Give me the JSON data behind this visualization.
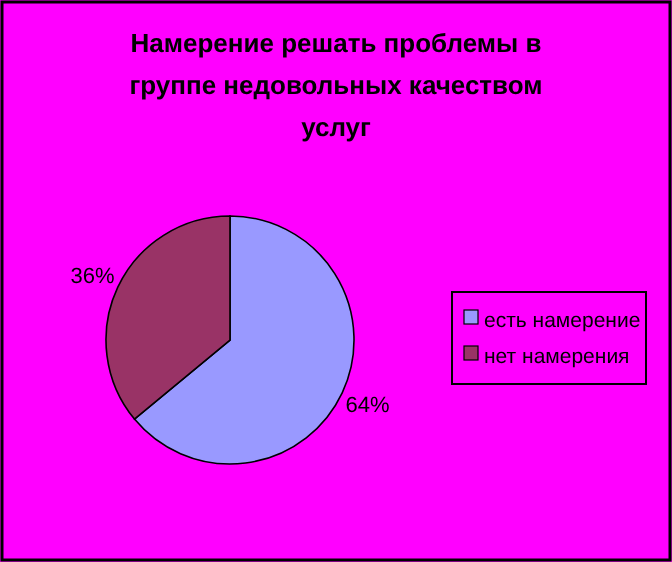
{
  "chart_data": {
    "type": "pie",
    "title": "Намерение решать проблемы в группе недовольных качеством услуг",
    "categories": [
      "есть намерение",
      "нет намерения"
    ],
    "values": [
      64,
      36
    ],
    "colors": [
      "#9999ff",
      "#993366"
    ],
    "value_labels": [
      "64%",
      "36%"
    ],
    "legend": "right"
  }
}
